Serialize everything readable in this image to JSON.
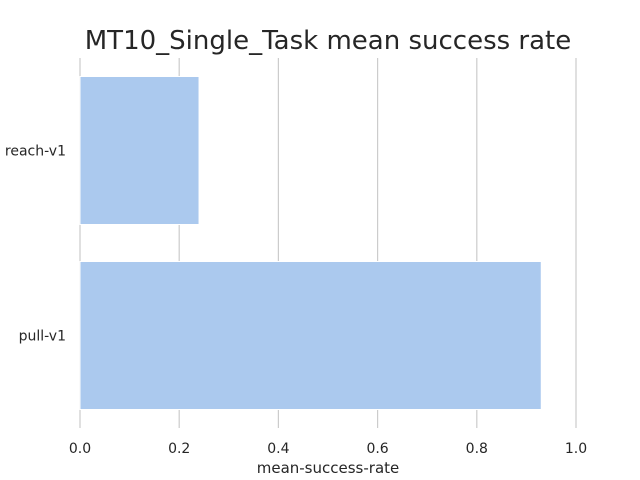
{
  "chart_data": {
    "type": "bar",
    "orientation": "horizontal",
    "title": "MT10_Single_Task mean success rate",
    "xlabel": "mean-success-rate",
    "ylabel": "",
    "categories": [
      "reach-v1",
      "pull-v1"
    ],
    "values": [
      0.24,
      0.93
    ],
    "xlim": [
      0.0,
      1.0
    ],
    "xticks": [
      "0.0",
      "0.2",
      "0.4",
      "0.6",
      "0.8",
      "1.0"
    ],
    "grid": true,
    "bar_color": "#abc9ee"
  }
}
